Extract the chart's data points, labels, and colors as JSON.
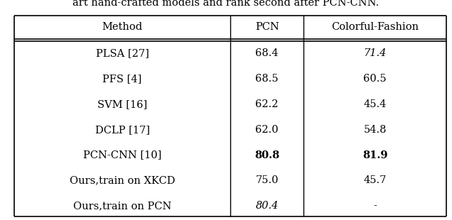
{
  "title_text": "art hand-crafted models and rank second after PCN-CNN.",
  "headers": [
    "Method",
    "PCN",
    "Colorful-Fashion"
  ],
  "rows": [
    {
      "method": "PLSA [27]",
      "pcn": "68.4",
      "cf": "71.4",
      "pcn_italic": false,
      "cf_italic": true,
      "pcn_bold": false,
      "cf_bold": false
    },
    {
      "method": "PFS [4]",
      "pcn": "68.5",
      "cf": "60.5",
      "pcn_italic": false,
      "cf_italic": false,
      "pcn_bold": false,
      "cf_bold": false
    },
    {
      "method": "SVM [16]",
      "pcn": "62.2",
      "cf": "45.4",
      "pcn_italic": false,
      "cf_italic": false,
      "pcn_bold": false,
      "cf_bold": false
    },
    {
      "method": "DCLP [17]",
      "pcn": "62.0",
      "cf": "54.8",
      "pcn_italic": false,
      "cf_italic": false,
      "pcn_bold": false,
      "cf_bold": false
    },
    {
      "method": "PCN-CNN [10]",
      "pcn": "80.8",
      "cf": "81.9",
      "pcn_italic": false,
      "cf_italic": false,
      "pcn_bold": true,
      "cf_bold": true
    },
    {
      "method": "Ours,train on XKCD",
      "pcn": "75.0",
      "cf": "45.7",
      "pcn_italic": false,
      "cf_italic": false,
      "pcn_bold": false,
      "cf_bold": false
    },
    {
      "method": "Ours,train on PCN",
      "pcn": "80.4",
      "cf": "-",
      "pcn_italic": true,
      "cf_italic": false,
      "pcn_bold": false,
      "cf_bold": false
    }
  ],
  "figsize": [
    6.36,
    3.1
  ],
  "dpi": 100,
  "bg_color": "#ffffff",
  "text_color": "#000000",
  "font_size": 10.5
}
